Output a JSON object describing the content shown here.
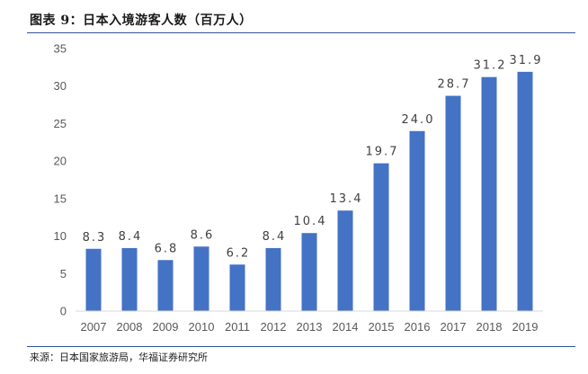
{
  "title": "图表 9：日本入境游客人数（百万人）",
  "source": "来源：日本国家旅游局，华福证券研究所",
  "chart_data": {
    "type": "bar",
    "categories": [
      "2007",
      "2008",
      "2009",
      "2010",
      "2011",
      "2012",
      "2013",
      "2014",
      "2015",
      "2016",
      "2017",
      "2018",
      "2019"
    ],
    "values": [
      8.3,
      8.4,
      6.8,
      8.6,
      6.2,
      8.4,
      10.4,
      13.4,
      19.7,
      24.0,
      28.7,
      31.2,
      31.9
    ],
    "value_labels": [
      "8.3",
      "8.4",
      "6.8",
      "8.6",
      "6.2",
      "8.4",
      "10.4",
      "13.4",
      "19.7",
      "24.0",
      "28.7",
      "31.2",
      "31.9"
    ],
    "ylim": [
      0,
      35
    ],
    "yticks": [
      0,
      5,
      10,
      15,
      20,
      25,
      30,
      35
    ],
    "grid": false,
    "bar_color": "#4472c4"
  }
}
